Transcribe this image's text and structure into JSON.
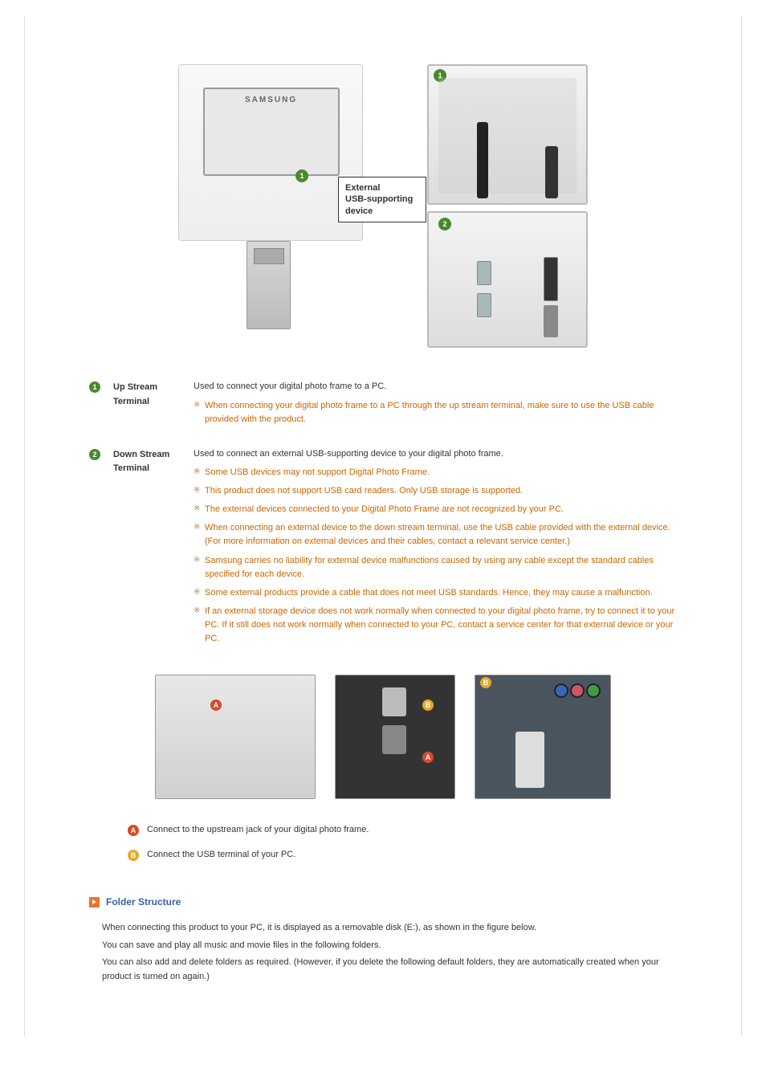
{
  "markers": {
    "one": "1",
    "two": "2",
    "A": "A",
    "B": "B"
  },
  "samsung_label": "SAMSUNG",
  "external_label_line1": "External",
  "external_label_line2": "USB-supporting",
  "external_label_line3": "device",
  "definitions": {
    "upstream": {
      "label": "Up Stream Terminal",
      "main": "Used to connect your digital photo frame to a PC.",
      "notes": [
        "When connecting your digital photo frame to a PC through the up stream terminal, make sure to use the USB cable provided with the product."
      ]
    },
    "downstream": {
      "label": "Down Stream Terminal",
      "main": "Used to connect an external USB-supporting device to your digital photo frame.",
      "notes": [
        "Some USB devices may not support Digital Photo Frame.",
        "This product does not support USB card readers. Only USB storage is supported.",
        "The external devices connected to your Digital Photo Frame are not recognized by your PC.",
        "When connecting an external device to the down stream terminal, use the USB cable provided with the external device. (For more information on external devices and their cables, contact a relevant service center.)",
        "Samsung carries no liability for external device malfunctions caused by using any cable except the standard cables specified for each device.",
        "Some external products provide a cable that does not meet USB standards. Hence, they may cause a malfunction.",
        "If an external storage device does not work normally when connected to your digital photo frame, try to connect it to your PC. If it still does not work normally when connected to your PC, contact a service center for that external device or your PC."
      ]
    }
  },
  "ab_legend": {
    "A": "Connect to the upstream jack of your digital photo frame.",
    "B": "Connect the USB terminal of your PC."
  },
  "section": {
    "folder_structure_title": "Folder Structure",
    "para1": "When connecting this product to your PC, it is displayed as a removable disk (E:), as shown in the figure below.",
    "para2": "You can save and play all music and movie files in the following folders.",
    "para3": "You can also add and delete folders as required. (However, if you delete the following default folders, they are automatically created when your product is turned on again.)"
  },
  "colors": {
    "marker_green": "#4a8a2d",
    "marker_red": "#d84a2a",
    "marker_yellow": "#e8a82c",
    "note_orange": "#cc6600",
    "title_blue": "#3564a3",
    "arrow_orange": "#e8782c"
  }
}
